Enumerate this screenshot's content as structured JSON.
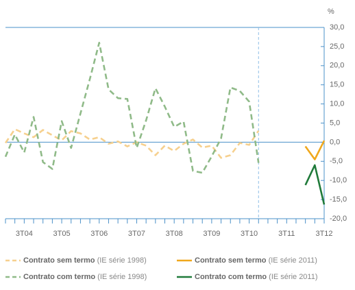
{
  "chart_data": {
    "type": "line",
    "y_unit": "%",
    "categories": [
      null,
      null,
      "3T04",
      null,
      null,
      null,
      "3T05",
      null,
      null,
      null,
      "3T06",
      null,
      null,
      null,
      "3T07",
      null,
      null,
      null,
      "3T08",
      null,
      null,
      null,
      "3T09",
      null,
      null,
      null,
      "3T10",
      null,
      null,
      null,
      "3T11",
      null,
      null,
      null,
      "3T12"
    ],
    "series": [
      {
        "name": "Contrato sem termo (IE série 1998)",
        "color": "#f6d08e",
        "dashed": true,
        "values": [
          -0.2,
          3.4,
          2.3,
          1.3,
          3.2,
          1.8,
          0.5,
          2.9,
          2.3,
          0.7,
          1.3,
          -0.4,
          0.2,
          -1.1,
          0,
          -0.9,
          -3.4,
          -0.9,
          -2.3,
          -0.4,
          0.7,
          -1.4,
          -0.9,
          -4.1,
          -3.4,
          -0.2,
          -0.7,
          3.0,
          null,
          null,
          null,
          null,
          null,
          null,
          null
        ]
      },
      {
        "name": "Contrato sem termo (IE série 2011)",
        "color": "#f0a81c",
        "dashed": false,
        "values": [
          null,
          null,
          null,
          null,
          null,
          null,
          null,
          null,
          null,
          null,
          null,
          null,
          null,
          null,
          null,
          null,
          null,
          null,
          null,
          null,
          null,
          null,
          null,
          null,
          null,
          null,
          null,
          null,
          null,
          null,
          null,
          null,
          -1.1,
          -4.5,
          0.4
        ]
      },
      {
        "name": "Contrato com termo (IE série 1998)",
        "color": "#8fba88",
        "dashed": true,
        "values": [
          -3.8,
          2.0,
          -2.7,
          6.6,
          -5.2,
          -7.0,
          5.5,
          -1.5,
          7.5,
          16.5,
          26.0,
          13.8,
          11.5,
          11.3,
          -1.5,
          5.7,
          14.1,
          9.3,
          4.0,
          5.4,
          -7.5,
          -8.0,
          -3.7,
          1.0,
          14.3,
          13.4,
          10.6,
          -5.4,
          null,
          null,
          null,
          null,
          null,
          null,
          null
        ]
      },
      {
        "name": "Contrato com termo (IE série 2011)",
        "color": "#1f7a3a",
        "dashed": false,
        "values": [
          null,
          null,
          null,
          null,
          null,
          null,
          null,
          null,
          null,
          null,
          null,
          null,
          null,
          null,
          null,
          null,
          null,
          null,
          null,
          null,
          null,
          null,
          null,
          null,
          null,
          null,
          null,
          null,
          null,
          null,
          null,
          null,
          -11.2,
          -6.0,
          -16.3
        ]
      }
    ],
    "ylim": [
      -20,
      30
    ],
    "yticks": [
      {
        "value": 30,
        "label": "30,0"
      },
      {
        "value": 25,
        "label": "25,0"
      },
      {
        "value": 20,
        "label": "20,0"
      },
      {
        "value": 15,
        "label": "15,0"
      },
      {
        "value": 10,
        "label": "10,0"
      },
      {
        "value": 5,
        "label": "5,0"
      },
      {
        "value": 0,
        "label": "0,0"
      },
      {
        "value": -5,
        "label": "-5,0"
      },
      {
        "value": -10,
        "label": "-10,0"
      },
      {
        "value": -15,
        "label": "-15,0"
      },
      {
        "value": -20,
        "label": "-20,0"
      }
    ]
  }
}
